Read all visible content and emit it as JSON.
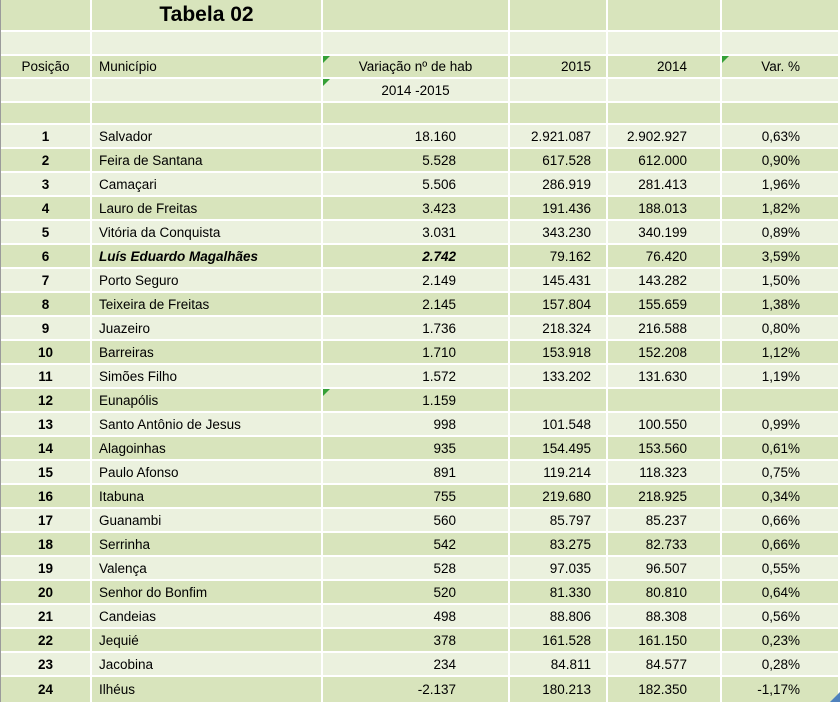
{
  "title": "Tabela 02",
  "header": {
    "posicao": "Posição",
    "municipio": "Município",
    "variacao_line1": "Variação nº de hab",
    "variacao_line2": "2014 -2015",
    "y2015": "2015",
    "y2014": "2014",
    "var_pct": "Var. %"
  },
  "rows": [
    {
      "pos": "1",
      "municipio": "Salvador",
      "variacao": "18.160",
      "y2015": "2.921.087",
      "y2014": "2.902.927",
      "var_pct": "0,63%"
    },
    {
      "pos": "2",
      "municipio": "Feira de Santana",
      "variacao": "5.528",
      "y2015": "617.528",
      "y2014": "612.000",
      "var_pct": "0,90%"
    },
    {
      "pos": "3",
      "municipio": "Camaçari",
      "variacao": "5.506",
      "y2015": "286.919",
      "y2014": "281.413",
      "var_pct": "1,96%"
    },
    {
      "pos": "4",
      "municipio": "Lauro de Freitas",
      "variacao": "3.423",
      "y2015": "191.436",
      "y2014": "188.013",
      "var_pct": "1,82%"
    },
    {
      "pos": "5",
      "municipio": "Vitória da Conquista",
      "variacao": "3.031",
      "y2015": "343.230",
      "y2014": "340.199",
      "var_pct": "0,89%"
    },
    {
      "pos": "6",
      "municipio": "Luís Eduardo Magalhães",
      "variacao": "2.742",
      "y2015": "79.162",
      "y2014": "76.420",
      "var_pct": "3,59%",
      "emphasis": true
    },
    {
      "pos": "7",
      "municipio": "Porto Seguro",
      "variacao": "2.149",
      "y2015": "145.431",
      "y2014": "143.282",
      "var_pct": "1,50%"
    },
    {
      "pos": "8",
      "municipio": "Teixeira de Freitas",
      "variacao": "2.145",
      "y2015": "157.804",
      "y2014": "155.659",
      "var_pct": "1,38%"
    },
    {
      "pos": "9",
      "municipio": "Juazeiro",
      "variacao": "1.736",
      "y2015": "218.324",
      "y2014": "216.588",
      "var_pct": "0,80%"
    },
    {
      "pos": "10",
      "municipio": "Barreiras",
      "variacao": "1.710",
      "y2015": "153.918",
      "y2014": "152.208",
      "var_pct": "1,12%"
    },
    {
      "pos": "11",
      "municipio": "Simões Filho",
      "variacao": "1.572",
      "y2015": "133.202",
      "y2014": "131.630",
      "var_pct": "1,19%"
    },
    {
      "pos": "12",
      "municipio": "Eunapólis",
      "variacao": "1.159",
      "y2015": "",
      "y2014": "",
      "var_pct": "",
      "marker": "variacao"
    },
    {
      "pos": "13",
      "municipio": "Santo Antônio de Jesus",
      "variacao": "998",
      "y2015": "101.548",
      "y2014": "100.550",
      "var_pct": "0,99%"
    },
    {
      "pos": "14",
      "municipio": "Alagoinhas",
      "variacao": "935",
      "y2015": "154.495",
      "y2014": "153.560",
      "var_pct": "0,61%"
    },
    {
      "pos": "15",
      "municipio": "Paulo Afonso",
      "variacao": "891",
      "y2015": "119.214",
      "y2014": "118.323",
      "var_pct": "0,75%"
    },
    {
      "pos": "16",
      "municipio": "Itabuna",
      "variacao": "755",
      "y2015": "219.680",
      "y2014": "218.925",
      "var_pct": "0,34%"
    },
    {
      "pos": "17",
      "municipio": "Guanambi",
      "variacao": "560",
      "y2015": "85.797",
      "y2014": "85.237",
      "var_pct": "0,66%"
    },
    {
      "pos": "18",
      "municipio": "Serrinha",
      "variacao": "542",
      "y2015": "83.275",
      "y2014": "82.733",
      "var_pct": "0,66%"
    },
    {
      "pos": "19",
      "municipio": "Valença",
      "variacao": "528",
      "y2015": "97.035",
      "y2014": "96.507",
      "var_pct": "0,55%"
    },
    {
      "pos": "20",
      "municipio": "Senhor do Bonfim",
      "variacao": "520",
      "y2015": "81.330",
      "y2014": "80.810",
      "var_pct": "0,64%"
    },
    {
      "pos": "21",
      "municipio": "Candeias",
      "variacao": "498",
      "y2015": "88.806",
      "y2014": "88.308",
      "var_pct": "0,56%"
    },
    {
      "pos": "22",
      "municipio": "Jequié",
      "variacao": "378",
      "y2015": "161.528",
      "y2014": "161.150",
      "var_pct": "0,23%"
    },
    {
      "pos": "23",
      "municipio": "Jacobina",
      "variacao": "234",
      "y2015": "84.811",
      "y2014": "84.577",
      "var_pct": "0,28%"
    },
    {
      "pos": "24",
      "municipio": "Ilhéus",
      "variacao": "-2.137",
      "y2015": "180.213",
      "y2014": "182.350",
      "var_pct": "-1,17%"
    }
  ],
  "colors": {
    "band_green": "#d8e4bc",
    "band_light": "#ebf1de",
    "gridline": "#ffffff",
    "comment_indicator_green": "#35a037",
    "corner_marker_blue": "#4f81bd",
    "text": "#000000"
  },
  "icons": {
    "comment_indicator": "green top-left triangle",
    "corner_marker": "blue bottom-right triangle"
  }
}
